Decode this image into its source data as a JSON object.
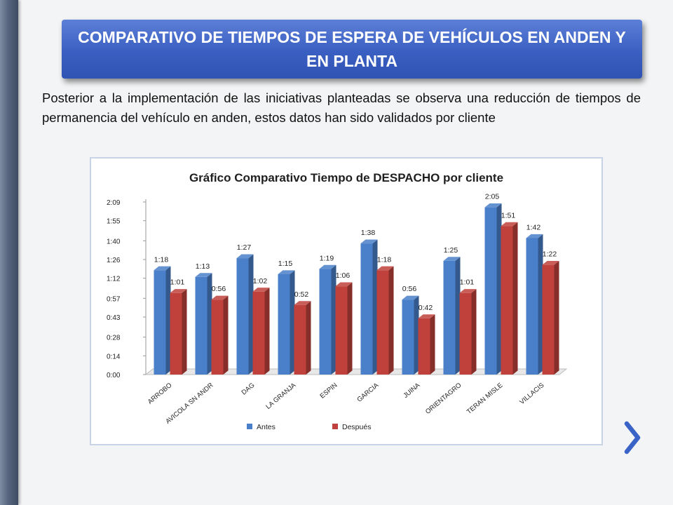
{
  "slide": {
    "title": "COMPARATIVO DE TIEMPOS DE ESPERA DE VEHÍCULOS EN ANDEN Y EN PLANTA",
    "body": "Posterior a la implementación de las iniciativas planteadas se observa una reducción de tiempos de permanencia del vehículo en anden, estos datos han sido validados por cliente",
    "next_icon": "chevron-right-icon",
    "accent_color": "#3a5fc2"
  },
  "chart_data": {
    "type": "bar",
    "title": "Gráfico Comparativo Tiempo de DESPACHO por cliente",
    "xlabel": "",
    "ylabel": "",
    "categories": [
      "ARROBO",
      "AVICOLA SN ANDR",
      "DAG",
      "LA GRANJA",
      "ESPIN",
      "GARCIA",
      "JUINA",
      "ORIENTAGRO",
      "TERAN MISLE",
      "VILLACIS"
    ],
    "series": [
      {
        "name": "Antes",
        "color": "#4a7fc9",
        "values": [
          "1:18",
          "1:13",
          "1:27",
          "1:15",
          "1:19",
          "1:38",
          "0:56",
          "1:25",
          "2:05",
          "1:42"
        ]
      },
      {
        "name": "Después",
        "color": "#c0413b",
        "values": [
          "1:01",
          "0:56",
          "1:02",
          "0:52",
          "1:06",
          "1:18",
          "0:42",
          "1:01",
          "1:51",
          "1:22"
        ]
      }
    ],
    "y_ticks": [
      "0:00",
      "0:14",
      "0:28",
      "0:43",
      "0:57",
      "1:12",
      "1:26",
      "1:40",
      "1:55",
      "2:09"
    ],
    "ylim": [
      "0:00",
      "2:09"
    ],
    "grid": false,
    "legend_position": "bottom-left"
  }
}
